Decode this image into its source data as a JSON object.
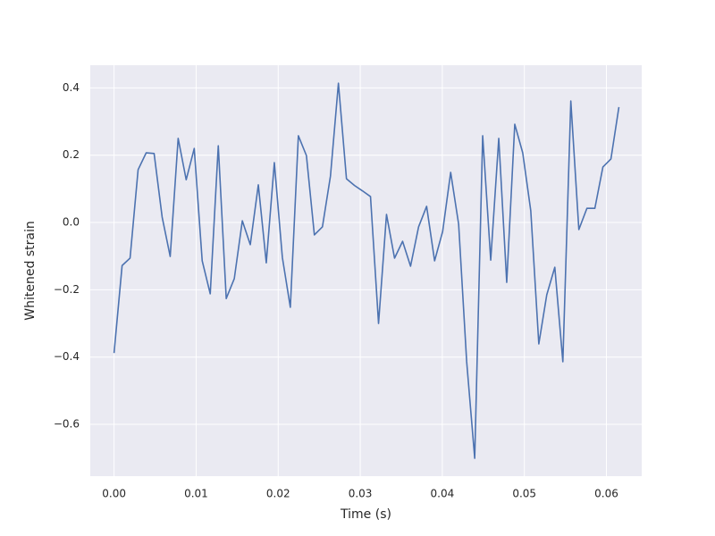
{
  "chart_data": {
    "type": "line",
    "x_label": "Time (s)",
    "y_label": "Whitened strain",
    "x": [
      0,
      0.00098,
      0.00195,
      0.00293,
      0.00391,
      0.00488,
      0.00586,
      0.00684,
      0.00781,
      0.00879,
      0.00977,
      0.01074,
      0.01172,
      0.0127,
      0.01367,
      0.01465,
      0.01563,
      0.0166,
      0.01758,
      0.01855,
      0.01953,
      0.02051,
      0.02148,
      0.02246,
      0.02344,
      0.02441,
      0.02539,
      0.02637,
      0.02734,
      0.02832,
      0.0293,
      0.03027,
      0.03125,
      0.03223,
      0.0332,
      0.03418,
      0.03516,
      0.03613,
      0.03711,
      0.03809,
      0.03906,
      0.04004,
      0.04102,
      0.04199,
      0.04297,
      0.04395,
      0.04492,
      0.0459,
      0.04688,
      0.04785,
      0.04883,
      0.0498,
      0.05078,
      0.05176,
      0.05273,
      0.05371,
      0.05469,
      0.05566,
      0.05664,
      0.05762,
      0.05859,
      0.05957,
      0.06055,
      0.06152
    ],
    "series": [
      {
        "color": "#4c72b0",
        "values": [
          -0.388,
          -0.128,
          -0.106,
          0.157,
          0.207,
          0.205,
          0.016,
          -0.101,
          0.25,
          0.127,
          0.22,
          -0.114,
          -0.212,
          0.228,
          -0.226,
          -0.167,
          0.005,
          -0.066,
          0.112,
          -0.12,
          0.178,
          -0.104,
          -0.252,
          0.258,
          0.199,
          -0.037,
          -0.013,
          0.138,
          0.414,
          0.13,
          0.11,
          0.094,
          0.077,
          -0.3,
          0.024,
          -0.106,
          -0.056,
          -0.13,
          -0.013,
          0.048,
          -0.114,
          -0.027,
          0.149,
          -0.005,
          -0.414,
          -0.701,
          0.258,
          -0.112,
          0.25,
          -0.178,
          0.292,
          0.207,
          0.035,
          -0.361,
          -0.215,
          -0.133,
          -0.414,
          0.361,
          -0.021,
          0.042,
          0.042,
          0.165,
          0.189,
          0.343
        ]
      }
    ],
    "xlim": [
      -0.0029,
      0.0643
    ],
    "ylim": [
      -0.754,
      0.4675
    ],
    "xticks": [
      {
        "value": 0,
        "label": "0.00"
      },
      {
        "value": 0.01,
        "label": "0.01"
      },
      {
        "value": 0.02,
        "label": "0.02"
      },
      {
        "value": 0.03,
        "label": "0.03"
      },
      {
        "value": 0.04,
        "label": "0.04"
      },
      {
        "value": 0.05,
        "label": "0.05"
      },
      {
        "value": 0.06,
        "label": "0.06"
      }
    ],
    "yticks": [
      {
        "value": -0.6,
        "label": "−0.6"
      },
      {
        "value": -0.4,
        "label": "−0.4"
      },
      {
        "value": -0.2,
        "label": "−0.2"
      },
      {
        "value": 0,
        "label": "0.0"
      },
      0.2,
      0.4
    ],
    "grid": true
  }
}
